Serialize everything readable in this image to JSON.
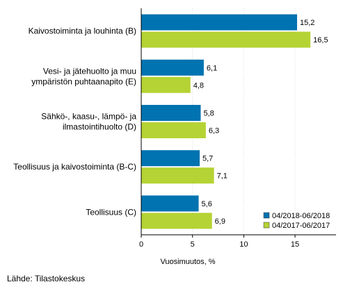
{
  "chart_data": {
    "type": "bar",
    "orientation": "horizontal",
    "categories": [
      [
        "Kaivostoiminta ja louhinta (B)"
      ],
      [
        "Vesi- ja jätehuolto ja muu",
        "ympäristön puhtaanapito (E)"
      ],
      [
        "Sähkö-, kaasu-, lämpö- ja",
        "ilmastointihuolto (D)"
      ],
      [
        "Teollisuus ja kaivostoiminta (B-C)"
      ],
      [
        "Teollisuus (C)"
      ]
    ],
    "series": [
      {
        "name": "04/2018-06/2018",
        "color": "#0073b0",
        "values": [
          15.2,
          6.1,
          5.8,
          5.7,
          5.6
        ],
        "labels": [
          "15,2",
          "6,1",
          "5,8",
          "5,7",
          "5,6"
        ]
      },
      {
        "name": "04/2017-06/2017",
        "color": "#b5d334",
        "values": [
          16.5,
          4.8,
          6.3,
          7.1,
          6.9
        ],
        "labels": [
          "16,5",
          "4,8",
          "6,3",
          "7,1",
          "6,9"
        ]
      }
    ],
    "xticks": [
      0,
      5,
      10,
      15
    ],
    "xtick_labels": [
      "0",
      "5",
      "10",
      "15"
    ],
    "xlim": [
      0,
      19
    ],
    "xlabel": "Vuosimuutos, %",
    "grid": "vertical",
    "legend_position": "bottom-right"
  },
  "source": "Lähde: Tilastokeskus"
}
